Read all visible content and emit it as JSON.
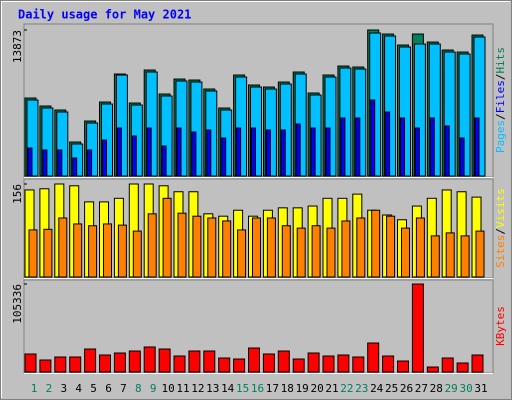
{
  "chart_data": {
    "type": "bar",
    "title": "Daily usage for May 2021",
    "legend_separator": "/",
    "categories": [
      "1",
      "2",
      "3",
      "4",
      "5",
      "6",
      "7",
      "8",
      "9",
      "10",
      "11",
      "12",
      "13",
      "14",
      "15",
      "16",
      "17",
      "18",
      "19",
      "20",
      "21",
      "22",
      "23",
      "24",
      "25",
      "26",
      "27",
      "28",
      "29",
      "30",
      "31"
    ],
    "category_colors": [
      "#00805c",
      "#00805c",
      "#000000",
      "#000000",
      "#000000",
      "#000000",
      "#000000",
      "#00805c",
      "#00805c",
      "#000000",
      "#000000",
      "#000000",
      "#000000",
      "#000000",
      "#00805c",
      "#00805c",
      "#000000",
      "#000000",
      "#000000",
      "#000000",
      "#000000",
      "#00805c",
      "#00805c",
      "#000000",
      "#000000",
      "#000000",
      "#000000",
      "#000000",
      "#00805c",
      "#00805c",
      "#000000"
    ],
    "panels": [
      {
        "ylim": [
          0,
          13873
        ],
        "yticks": [
          13873
        ],
        "series": [
          {
            "name": "Pages",
            "color": "#00c0ff",
            "values": [
              7220,
              6460,
              6080,
              3040,
              5035,
              6840,
              9595,
              6745,
              9880,
              7600,
              9025,
              8930,
              8075,
              6270,
              9405,
              8455,
              8265,
              8740,
              9690,
              7695,
              9405,
              10260,
              10165,
              13585,
              13300,
              12255,
              12540,
              12540,
              11780,
              11590,
              13205
            ]
          },
          {
            "name": "Files",
            "color": "#0000ff",
            "values": [
              2660,
              2470,
              2470,
              1710,
              2470,
              3420,
              4560,
              3800,
              4560,
              2850,
              4560,
              4180,
              4370,
              3610,
              4560,
              4560,
              4370,
              4370,
              4940,
              4560,
              4560,
              5510,
              5510,
              7220,
              6080,
              5510,
              4560,
              5510,
              4750,
              3610,
              5510
            ]
          },
          {
            "name": "Hits",
            "color": "#00805c",
            "values": [
              7410,
              6650,
              6270,
              3230,
              5225,
              7030,
              9690,
              6935,
              10070,
              7790,
              9215,
              9120,
              8265,
              6460,
              9595,
              8645,
              8455,
              8930,
              9880,
              7885,
              9595,
              10450,
              10355,
              13873,
              13490,
              12445,
              13490,
              12730,
              11970,
              11780,
              13395
            ]
          }
        ]
      },
      {
        "ylim": [
          0,
          156
        ],
        "yticks": [
          156
        ],
        "series": [
          {
            "name": "Sites",
            "color": "#ff8000",
            "values": [
              79,
              80,
              99,
              89,
              86,
              89,
              87,
              77,
              106,
              132,
              107,
              102,
              99,
              94,
              79,
              99,
              99,
              86,
              82,
              86,
              82,
              94,
              99,
              112,
              102,
              82,
              99,
              69,
              74,
              69,
              77
            ]
          },
          {
            "name": "Visits",
            "color": "#ffff00",
            "values": [
              146,
              148,
              156,
              153,
              126,
              126,
              132,
              156,
              156,
              153,
              143,
              143,
              106,
              102,
              112,
              102,
              112,
              116,
              116,
              119,
              132,
              132,
              139,
              112,
              104,
              96,
              119,
              132,
              146,
              143,
              134
            ]
          }
        ]
      },
      {
        "ylim": [
          0,
          105336
        ],
        "yticks": [
          105336
        ],
        "series": [
          {
            "name": "KBytes",
            "color": "#ff0000",
            "values": [
              21546,
              14364,
              17955,
              17955,
              27531,
              20349,
              22743,
              25137,
              29925,
              27531,
              19152,
              25137,
              25137,
              16758,
              15561,
              28728,
              21546,
              25137,
              15561,
              22743,
              19152,
              20349,
              17955,
              34713,
              19152,
              13167,
              105336,
              5985,
              16758,
              10773,
              20349
            ]
          }
        ]
      }
    ]
  }
}
